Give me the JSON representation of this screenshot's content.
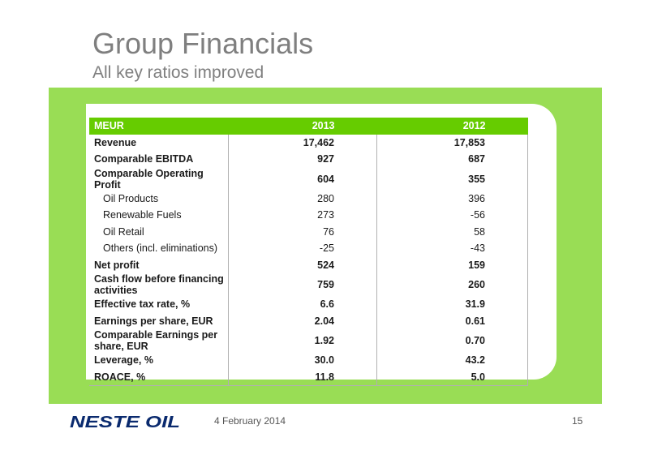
{
  "slide": {
    "title": "Group Financials",
    "subtitle": "All key ratios improved",
    "date": "4 February 2014",
    "page_number": "15",
    "logo_text": "NESTE OIL"
  },
  "colors": {
    "band_green": "#99dd55",
    "header_green": "#66cc00",
    "logo_navy": "#0a2a6e",
    "title_gray": "#7f7f7f"
  },
  "table": {
    "header": {
      "label": "MEUR",
      "col1": "2013",
      "col2": "2012"
    },
    "rows": [
      {
        "label": "Revenue",
        "v2013": "17,462",
        "v2012": "17,853"
      },
      {
        "label": "Comparable EBITDA",
        "v2013": "927",
        "v2012": "687"
      },
      {
        "label": "Comparable Operating Profit",
        "v2013": "604",
        "v2012": "355"
      },
      {
        "label": "Oil Products",
        "v2013": "280",
        "v2012": "396"
      },
      {
        "label": "Renewable Fuels",
        "v2013": "273",
        "v2012": "-56"
      },
      {
        "label": "Oil Retail",
        "v2013": "76",
        "v2012": "58"
      },
      {
        "label": "Others (incl. eliminations)",
        "v2013": "-25",
        "v2012": "-43"
      },
      {
        "label": "Net profit",
        "v2013": "524",
        "v2012": "159"
      },
      {
        "label": "Cash flow before financing activities",
        "v2013": "759",
        "v2012": "260"
      },
      {
        "label": "Effective tax rate, %",
        "v2013": "6.6",
        "v2012": "31.9"
      },
      {
        "label": "Earnings per share, EUR",
        "v2013": "2.04",
        "v2012": "0.61"
      },
      {
        "label": "Comparable Earnings per share, EUR",
        "v2013": "1.92",
        "v2012": "0.70"
      },
      {
        "label": "Leverage, %",
        "v2013": "30.0",
        "v2012": "43.2"
      },
      {
        "label": "ROACE, %",
        "v2013": "11.8",
        "v2012": "5.0"
      }
    ]
  }
}
